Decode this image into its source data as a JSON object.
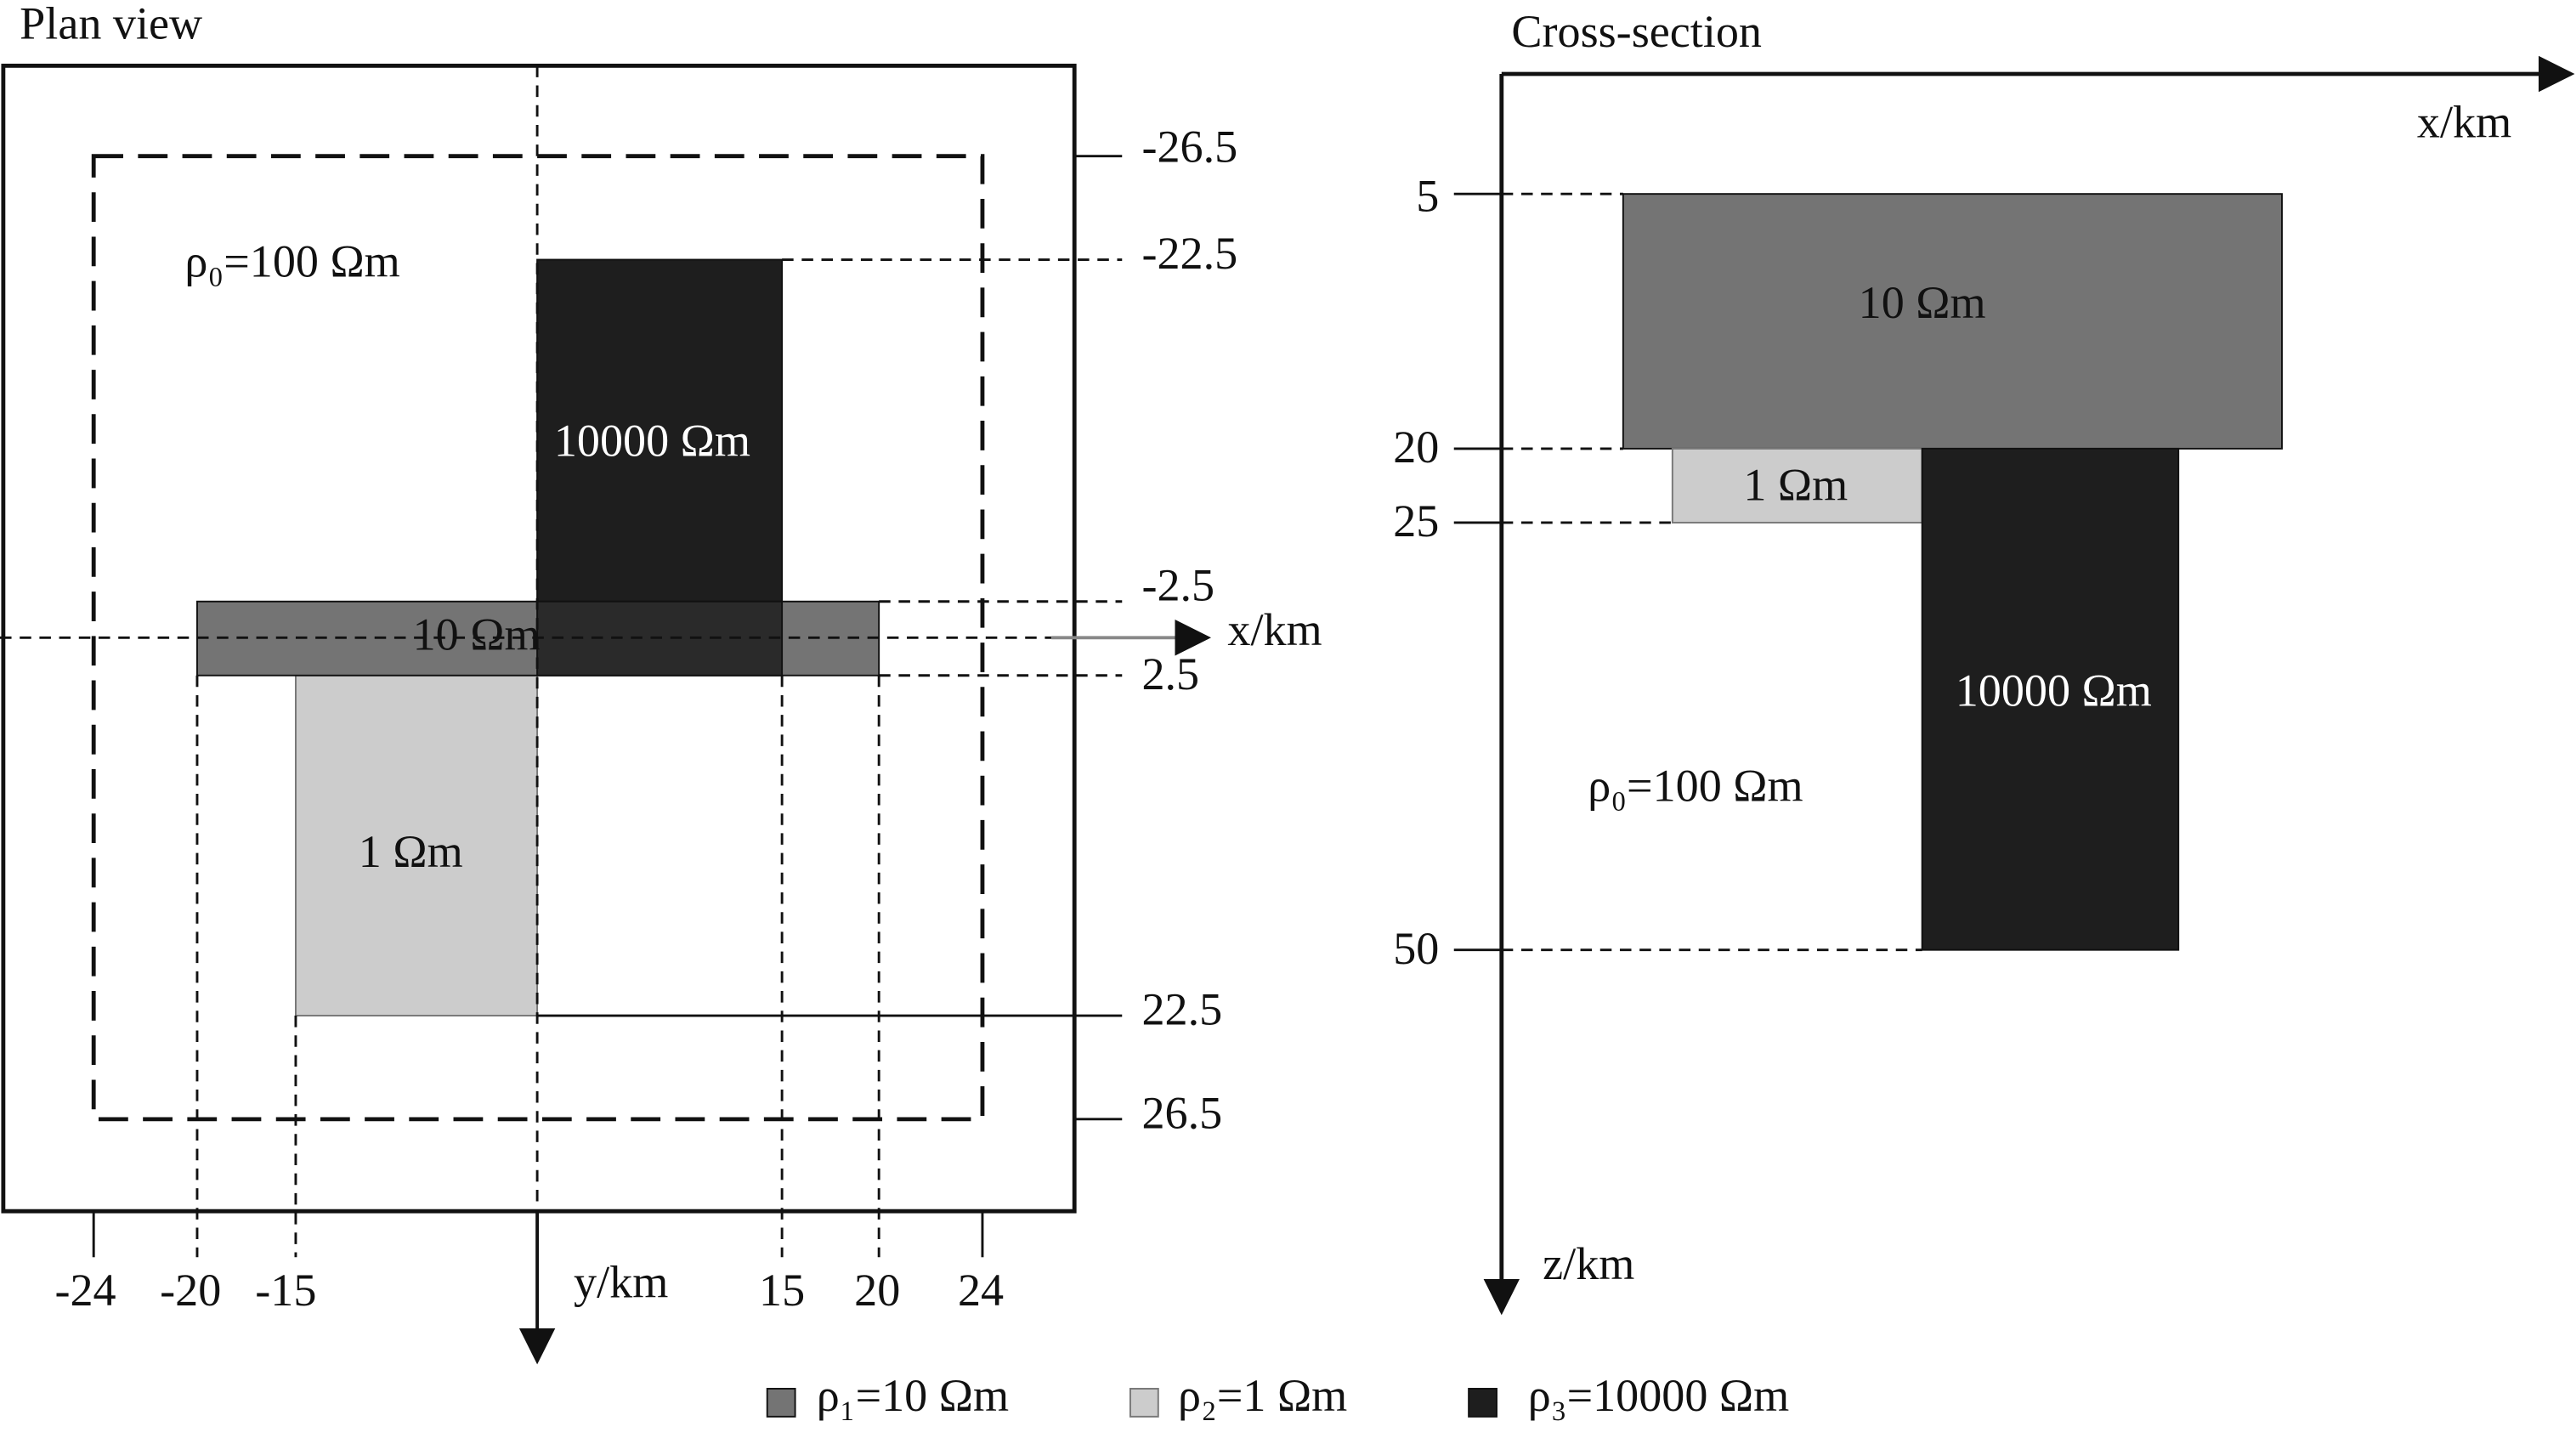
{
  "plan_view": {
    "title": "Plan view",
    "x_axis_label": "x/km",
    "y_axis_label": "y/km",
    "x_ticks": [
      "-24",
      "-20",
      "-15",
      "15",
      "20",
      "24"
    ],
    "y_ticks": [
      "-26.5",
      "-22.5",
      "-2.5",
      "2.5",
      "22.5",
      "26.5"
    ],
    "background_label": "ρ₀=100 Ωm",
    "blocks": [
      "10 Ωm",
      "1 Ωm",
      "10000 Ωm"
    ]
  },
  "cross_section": {
    "title": "Cross-section",
    "x_axis_label": "x/km",
    "z_axis_label": "z/km",
    "depth_ticks": [
      "5",
      "20",
      "25",
      "50"
    ],
    "background_label": "ρ₀=100 Ωm",
    "blocks": [
      "10 Ωm",
      "1 Ωm",
      "10000 Ωm"
    ]
  },
  "legend": [
    "ρ₁=10 Ωm",
    "ρ₂=1 Ωm",
    "ρ₃=10000 Ωm"
  ]
}
